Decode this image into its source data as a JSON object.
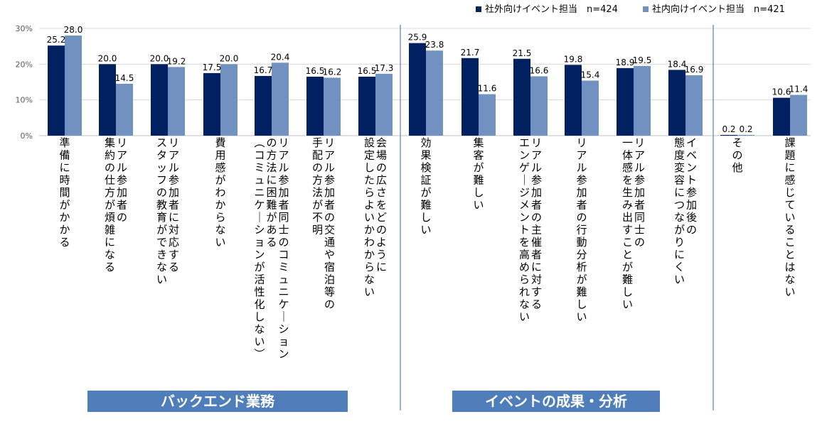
{
  "chart_data": {
    "type": "bar",
    "title": "",
    "xlabel": "",
    "ylabel": "",
    "ylim": [
      0,
      30
    ],
    "yticks": [
      "0%",
      "10%",
      "20%",
      "30%"
    ],
    "grid": true,
    "legend_position": "top-right",
    "series": [
      {
        "name": "社外向けイベント担当　n=424",
        "color": "#002060",
        "values": [
          25.2,
          20.0,
          20.0,
          17.5,
          16.7,
          16.5,
          16.5,
          25.9,
          21.7,
          21.5,
          19.8,
          18.9,
          18.4,
          0.2,
          10.6
        ]
      },
      {
        "name": "社内向けイベント担当　n=421",
        "color": "#7191C0",
        "values": [
          28.0,
          14.5,
          19.2,
          20.0,
          20.4,
          16.2,
          17.3,
          23.8,
          11.6,
          16.6,
          15.4,
          19.5,
          16.9,
          0.2,
          11.4
        ]
      }
    ],
    "value_labels": [
      [
        "25.2",
        "20.0",
        "20.0",
        "17.5",
        "16.7",
        "16.5",
        "16.5",
        "25.9",
        "21.7",
        "21.5",
        "19.8",
        "18.9",
        "18.4",
        "0.2",
        "10.6"
      ],
      [
        "28.0",
        "14.5",
        "19.2",
        "20.0",
        "20.4",
        "16.2",
        "17.3",
        "23.8",
        "11.6",
        "16.6",
        "15.4",
        "19.5",
        "16.9",
        "0.2",
        "11.4"
      ]
    ],
    "categories": [
      "準備に時間がかかる",
      "リアル参加者の集約の仕方が煩雑になる",
      "リアル参加者に対応するスタッフの教育ができない",
      "費用感がわからない",
      "リアル参加者同士のコミュニケーションの方法に困難がある（コミュニケーションが活性化しない）",
      "リアル参加者の交通や宿泊等の手配の方法が不明",
      "会場の広さをどのように設定したらよいかわからない",
      "効果検証が難しい",
      "集客が難しい",
      "リアル参加者の主催者に対するエンゲージメントを高められない",
      "リアル参加者の行動分析が難しい",
      "リアル参加者同士の一体感を生み出すことが難しい",
      "イベント参加後の態度変容につながりにくい",
      "その他",
      "課題に感じていることはない"
    ],
    "category_label_columns": [
      [
        "準備に時間がかかる"
      ],
      [
        "集約の仕方が煩雑になる",
        "リアル参加者の"
      ],
      [
        "スタッフの教育ができない",
        "リアル参加者に対応する"
      ],
      [
        "費用感がわからない"
      ],
      [
        "（コミュニケーションが活性化しない）",
        "の方法に困難がある",
        "リアル参加者同士のコミュニケーション"
      ],
      [
        "手配の方法が不明",
        "リアル参加者の交通や宿泊等の"
      ],
      [
        "設定したらよいかわからない",
        "会場の広さをどのように"
      ],
      [
        "効果検証が難しい"
      ],
      [
        "集客が難しい"
      ],
      [
        "エンゲージメントを高められない",
        "リアル参加者の主催者に対する"
      ],
      [
        "リアル参加者の行動分析が難しい"
      ],
      [
        "一体感を生み出すことが難しい",
        "リアル参加者同士の"
      ],
      [
        "態度変容につながりにくい",
        "イベント参加後の"
      ],
      [
        "その他"
      ],
      [
        "課題に感じていることはない"
      ]
    ],
    "groups": [
      {
        "label": "バックエンド業務",
        "color": "#4F7EBB"
      },
      {
        "label": "イベントの成果・分析",
        "color": "#4F7EBB"
      }
    ],
    "grid_color": "#D9D9D9",
    "separator_color": "#5A7FB5"
  }
}
